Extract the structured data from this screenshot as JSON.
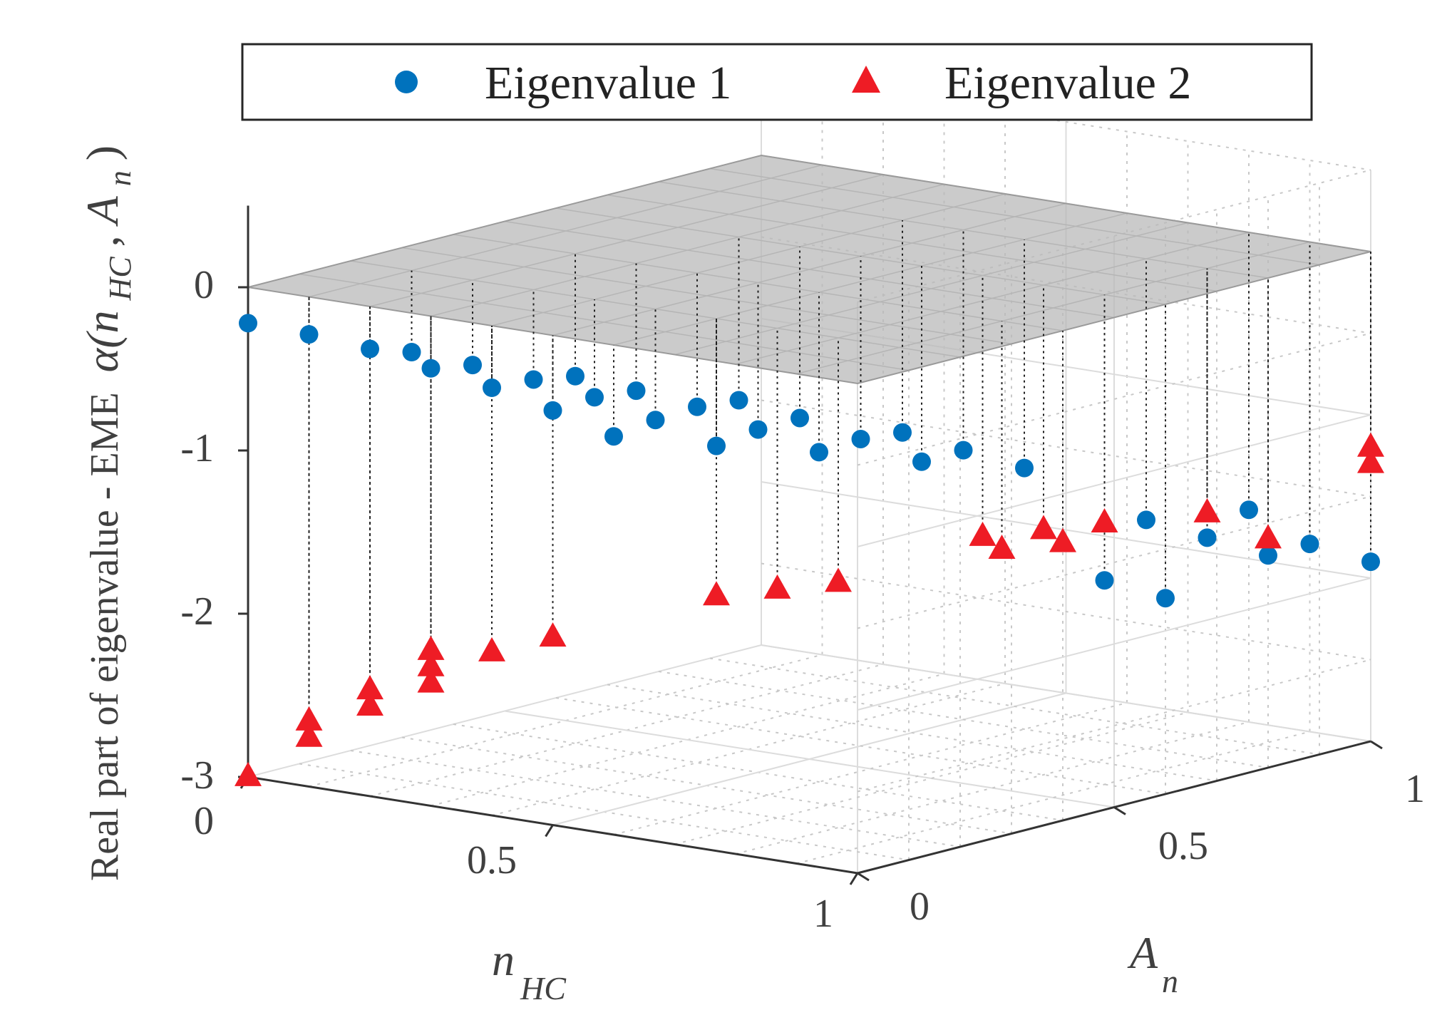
{
  "chart_data": {
    "type": "scatter",
    "projection": "3d",
    "ylabel": "Real part of eigenvalue - EME",
    "xlabel": "n",
    "xlabel_sub": "HC",
    "zlabel_axis": "A",
    "zlabel_sub": "n",
    "ylim": [
      -3,
      0.5
    ],
    "xlim": [
      0,
      1
    ],
    "zlim": [
      0,
      1
    ],
    "y_ticks": [
      "0",
      "-1",
      "-2",
      "-3"
    ],
    "n_ticks": [
      "0",
      "0.5",
      "1"
    ],
    "a_ticks": [
      "0",
      "0.5",
      "1"
    ],
    "grid": true,
    "reference_plane": 0,
    "legend_position": "top",
    "series": [
      {
        "name": "Eigenvalue 1",
        "color": "#0072BD",
        "marker": "circle",
        "points": [
          [
            0.0,
            0.0,
            -0.22
          ],
          [
            0.1,
            0.0,
            -0.23
          ],
          [
            0.2,
            0.0,
            -0.26
          ],
          [
            0.3,
            0.0,
            -0.32
          ],
          [
            0.4,
            0.0,
            -0.38
          ],
          [
            0.5,
            0.0,
            -0.46
          ],
          [
            0.6,
            0.0,
            -0.56
          ],
          [
            0.1,
            0.2,
            -0.5
          ],
          [
            0.2,
            0.2,
            -0.52
          ],
          [
            0.3,
            0.2,
            -0.55
          ],
          [
            0.4,
            0.2,
            -0.6
          ],
          [
            0.5,
            0.2,
            -0.68
          ],
          [
            0.6,
            0.2,
            -0.78
          ],
          [
            0.2,
            0.4,
            -0.75
          ],
          [
            0.3,
            0.4,
            -0.78
          ],
          [
            0.4,
            0.4,
            -0.82
          ],
          [
            0.5,
            0.4,
            -0.9
          ],
          [
            0.6,
            0.4,
            -0.98
          ],
          [
            0.3,
            0.6,
            -1.0
          ],
          [
            0.4,
            0.6,
            -1.05
          ],
          [
            0.5,
            0.6,
            -1.12
          ],
          [
            0.6,
            0.6,
            -1.2
          ],
          [
            0.4,
            0.8,
            -1.3
          ],
          [
            0.5,
            0.8,
            -1.35
          ],
          [
            0.6,
            0.8,
            -1.4
          ],
          [
            0.9,
            0.6,
            -1.75
          ],
          [
            1.0,
            0.6,
            -1.8
          ],
          [
            0.8,
            0.8,
            -1.6
          ],
          [
            0.9,
            0.8,
            -1.65
          ],
          [
            1.0,
            0.8,
            -1.7
          ],
          [
            0.9,
            1.0,
            -1.85
          ],
          [
            1.0,
            1.0,
            -1.9
          ],
          [
            0.8,
            1.0,
            -1.7
          ]
        ]
      },
      {
        "name": "Eigenvalue 2",
        "color": "#EE1C25",
        "marker": "triangle",
        "points": [
          [
            0.0,
            0.0,
            -3.0
          ],
          [
            0.1,
            0.0,
            -2.7
          ],
          [
            0.1,
            0.0,
            -2.6
          ],
          [
            0.2,
            0.0,
            -2.45
          ],
          [
            0.2,
            0.0,
            -2.35
          ],
          [
            0.3,
            0.0,
            -2.25
          ],
          [
            0.3,
            0.0,
            -2.15
          ],
          [
            0.3,
            0.0,
            -2.05
          ],
          [
            0.4,
            0.0,
            -2.0
          ],
          [
            0.5,
            0.0,
            -1.85
          ],
          [
            0.6,
            0.2,
            -1.7
          ],
          [
            0.7,
            0.2,
            -1.6
          ],
          [
            0.8,
            0.2,
            -1.5
          ],
          [
            0.9,
            0.4,
            -1.4
          ],
          [
            1.0,
            0.4,
            -1.3
          ],
          [
            0.7,
            0.6,
            -1.6
          ],
          [
            0.8,
            0.6,
            -1.5
          ],
          [
            0.9,
            0.6,
            -1.4
          ],
          [
            1.0,
            0.8,
            -1.6
          ],
          [
            0.9,
            0.8,
            -1.5
          ],
          [
            1.0,
            1.0,
            -1.2
          ],
          [
            1.0,
            1.0,
            -1.3
          ]
        ]
      }
    ]
  },
  "legend": {
    "items": [
      {
        "label": "Eigenvalue 1",
        "color": "#0072BD",
        "marker": "circle"
      },
      {
        "label": "Eigenvalue 2",
        "color": "#EE1C25",
        "marker": "triangle"
      }
    ]
  }
}
